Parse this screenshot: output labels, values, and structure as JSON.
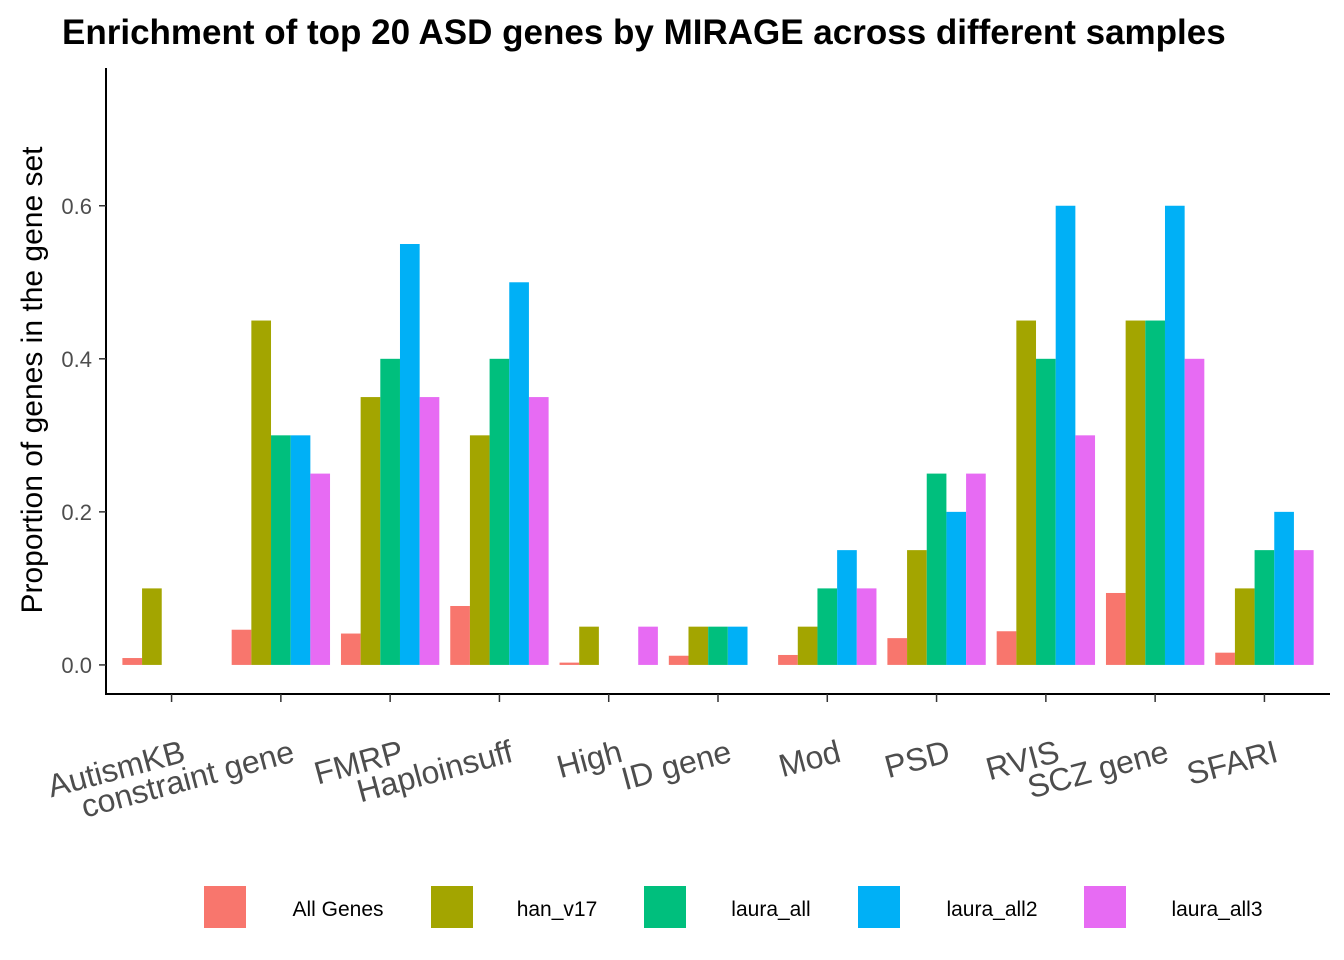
{
  "chart_data": {
    "type": "bar",
    "title": "Enrichment of top 20 ASD genes by MIRAGE across different samples",
    "xlabel": "",
    "ylabel": "Proportion of genes in the gene set",
    "ylim": [
      -0.038,
      0.78
    ],
    "yticks": [
      0.0,
      0.2,
      0.4,
      0.6
    ],
    "ytick_labels": [
      "0.0",
      "0.2",
      "0.4",
      "0.6"
    ],
    "categories": [
      "AutismKB",
      "constraint gene",
      "FMRP",
      "Haploinsuff",
      "High",
      "ID gene",
      "Mod",
      "PSD",
      "RVIS",
      "SCZ gene",
      "SFARI"
    ],
    "grid": false,
    "legend_position": "bottom",
    "series": [
      {
        "name": "All Genes",
        "color": "#F8766D",
        "values": [
          0.009,
          0.046,
          0.041,
          0.077,
          0.003,
          0.012,
          0.013,
          0.035,
          0.044,
          0.094,
          0.016
        ]
      },
      {
        "name": "han_v17",
        "color": "#A3A500",
        "values": [
          0.1,
          0.45,
          0.35,
          0.3,
          0.05,
          0.05,
          0.05,
          0.15,
          0.45,
          0.45,
          0.1
        ]
      },
      {
        "name": "laura_all",
        "color": "#00BF7D",
        "values": [
          0.0,
          0.3,
          0.4,
          0.4,
          0.0,
          0.05,
          0.1,
          0.25,
          0.4,
          0.45,
          0.15
        ]
      },
      {
        "name": "laura_all2",
        "color": "#00B0F6",
        "values": [
          0.0,
          0.3,
          0.55,
          0.5,
          0.0,
          0.05,
          0.15,
          0.2,
          0.6,
          0.6,
          0.2
        ]
      },
      {
        "name": "laura_all3",
        "color": "#E76BF3",
        "values": [
          0.0,
          0.25,
          0.35,
          0.35,
          0.05,
          0.0,
          0.1,
          0.25,
          0.3,
          0.4,
          0.15
        ]
      }
    ]
  }
}
